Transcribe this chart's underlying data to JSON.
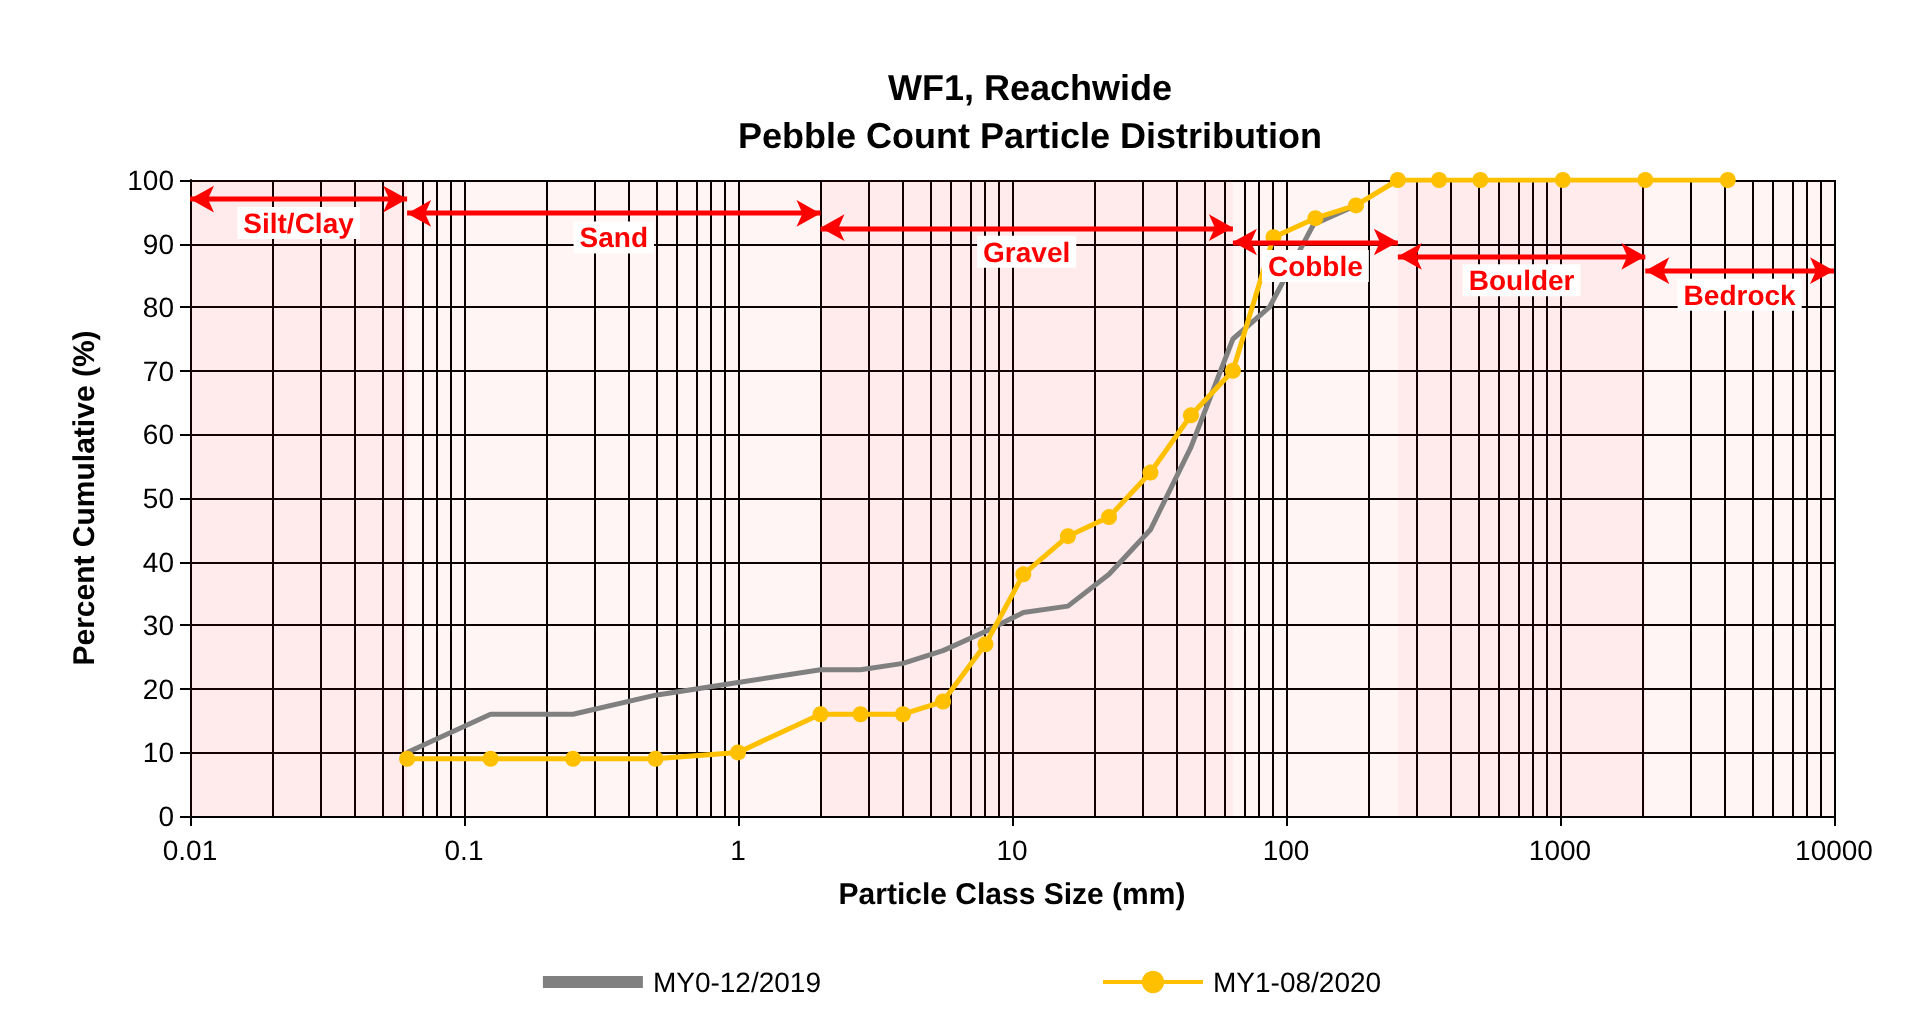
{
  "chart_data": {
    "type": "line",
    "title": "WF1, Reachwide",
    "subtitle": "Pebble Count Particle Distribution",
    "xlabel": "Particle Class Size (mm)",
    "ylabel": "Percent Cumulative (%)",
    "log": "x",
    "xlim": [
      0.01,
      10000
    ],
    "xticks": [
      0.01,
      0.1,
      1,
      10,
      100,
      1000,
      10000
    ],
    "ylim": [
      0,
      100
    ],
    "yticks": [
      0,
      10,
      20,
      30,
      40,
      50,
      60,
      70,
      80,
      90,
      100
    ],
    "grid": true,
    "legend": "bottom",
    "series": [
      {
        "name": "MY0-12/2019",
        "color": "#808080",
        "marker": "none",
        "x": [
          0.062,
          0.125,
          0.25,
          0.5,
          1,
          2,
          2.8,
          4,
          5.6,
          8,
          11,
          16,
          22.6,
          32,
          45,
          64,
          87,
          126,
          180
        ],
        "values": [
          10,
          16,
          16,
          19,
          21,
          23,
          23,
          24,
          26,
          29,
          32,
          33,
          38,
          45,
          58,
          75,
          80,
          93,
          96
        ]
      },
      {
        "name": "MY1-08/2020",
        "color": "#ffc000",
        "marker": "circle",
        "x": [
          0.062,
          0.125,
          0.25,
          0.5,
          1,
          2,
          2.8,
          4,
          5.6,
          8,
          11,
          16,
          22.6,
          32,
          45,
          64,
          90,
          128,
          180,
          256,
          362,
          512,
          1024,
          2048,
          4096
        ],
        "values": [
          9,
          9,
          9,
          9,
          10,
          16,
          16,
          16,
          18,
          27,
          38,
          44,
          47,
          54,
          63,
          70,
          91,
          94,
          96,
          100,
          100,
          100,
          100,
          100,
          100
        ]
      }
    ],
    "bands": [
      {
        "axis": "x",
        "from": 0.01,
        "to": 0.062,
        "label": "Silt/Clay",
        "color": "#ff0000"
      },
      {
        "axis": "x",
        "from": 0.062,
        "to": 2,
        "label": "Sand",
        "color": "#ff0000"
      },
      {
        "axis": "x",
        "from": 2,
        "to": 64,
        "label": "Gravel",
        "color": "#ff0000"
      },
      {
        "axis": "x",
        "from": 64,
        "to": 256,
        "label": "Cobble",
        "color": "#ff0000"
      },
      {
        "axis": "x",
        "from": 256,
        "to": 2048,
        "label": "Boulder",
        "color": "#ff0000"
      },
      {
        "axis": "x",
        "from": 2048,
        "to": 10000,
        "label": "Bedrock",
        "color": "#ff0000"
      }
    ]
  }
}
